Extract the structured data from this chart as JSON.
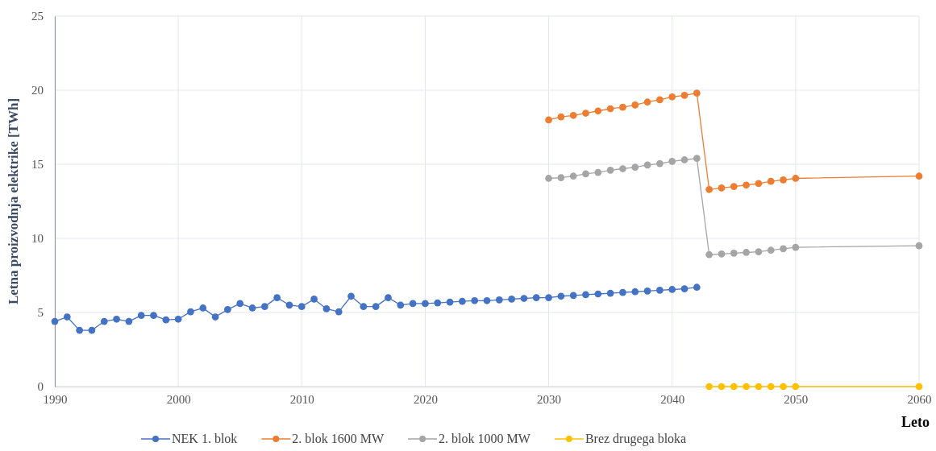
{
  "chart_data": {
    "type": "line",
    "xlabel": "Leto",
    "ylabel": "Letna proizvodnja elektrike  [TWh]",
    "xlim": [
      1990,
      2060
    ],
    "xticks": [
      1990,
      2000,
      2010,
      2020,
      2030,
      2040,
      2050,
      2060
    ],
    "ylim": [
      0,
      25
    ],
    "yticks": [
      0,
      5,
      10,
      15,
      20,
      25
    ],
    "grid": true,
    "legend": "bottom",
    "marker": "circle",
    "line_style": "solid",
    "series": [
      {
        "name": "NEK 1. blok",
        "color": "#4472c4",
        "x": [
          1990,
          1991,
          1992,
          1993,
          1994,
          1995,
          1996,
          1997,
          1998,
          1999,
          2000,
          2001,
          2002,
          2003,
          2004,
          2005,
          2006,
          2007,
          2008,
          2009,
          2010,
          2011,
          2012,
          2013,
          2014,
          2015,
          2016,
          2017,
          2018,
          2019,
          2020,
          2021,
          2022,
          2023,
          2024,
          2025,
          2026,
          2027,
          2028,
          2029,
          2030,
          2031,
          2032,
          2033,
          2034,
          2035,
          2036,
          2037,
          2038,
          2039,
          2040,
          2041,
          2042
        ],
        "values": [
          4.4,
          4.7,
          3.8,
          3.8,
          4.4,
          4.55,
          4.4,
          4.8,
          4.8,
          4.5,
          4.55,
          5.05,
          5.3,
          4.7,
          5.2,
          5.6,
          5.3,
          5.4,
          6.0,
          5.5,
          5.4,
          5.9,
          5.25,
          5.05,
          6.1,
          5.4,
          5.4,
          6.0,
          5.5,
          5.6,
          5.6,
          5.65,
          5.7,
          5.75,
          5.8,
          5.8,
          5.85,
          5.9,
          5.95,
          6.0,
          6.0,
          6.1,
          6.15,
          6.2,
          6.25,
          6.3,
          6.35,
          6.4,
          6.45,
          6.5,
          6.55,
          6.6,
          6.7
        ]
      },
      {
        "name": "2. blok 1600 MW",
        "color": "#ed7d31",
        "x": [
          2030,
          2031,
          2032,
          2033,
          2034,
          2035,
          2036,
          2037,
          2038,
          2039,
          2040,
          2041,
          2042,
          2043,
          2044,
          2045,
          2046,
          2047,
          2048,
          2049,
          2050,
          2060
        ],
        "values": [
          18.0,
          18.2,
          18.3,
          18.45,
          18.6,
          18.75,
          18.85,
          19.0,
          19.2,
          19.35,
          19.55,
          19.65,
          19.8,
          13.3,
          13.4,
          13.5,
          13.6,
          13.7,
          13.85,
          13.95,
          14.05,
          14.2
        ]
      },
      {
        "name": "2. blok 1000 MW",
        "color": "#a5a5a5",
        "x": [
          2030,
          2031,
          2032,
          2033,
          2034,
          2035,
          2036,
          2037,
          2038,
          2039,
          2040,
          2041,
          2042,
          2043,
          2044,
          2045,
          2046,
          2047,
          2048,
          2049,
          2050,
          2060
        ],
        "values": [
          14.05,
          14.1,
          14.2,
          14.35,
          14.45,
          14.6,
          14.7,
          14.8,
          14.95,
          15.05,
          15.2,
          15.3,
          15.4,
          8.9,
          8.95,
          9.0,
          9.05,
          9.1,
          9.2,
          9.3,
          9.4,
          9.5
        ]
      },
      {
        "name": "Brez drugega bloka",
        "color": "#ffc000",
        "x": [
          2043,
          2044,
          2045,
          2046,
          2047,
          2048,
          2049,
          2050,
          2060
        ],
        "values": [
          0,
          0,
          0,
          0,
          0,
          0,
          0,
          0,
          0
        ]
      }
    ]
  }
}
